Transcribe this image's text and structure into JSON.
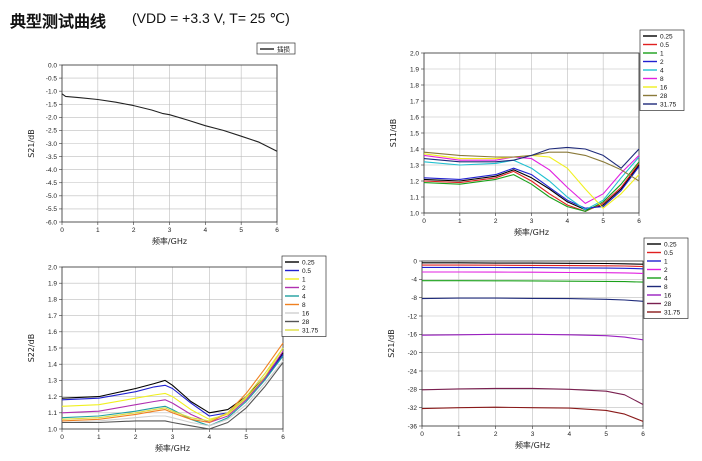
{
  "header": {
    "title": "典型测试曲线",
    "condition": "(VDD = +3.3 V, T= 25 ℃)"
  },
  "chart_data": [
    {
      "id": "c1",
      "type": "line",
      "xlabel": "频率/GHz",
      "ylabel": "S21/dB",
      "xlim": [
        0,
        6
      ],
      "ylim": [
        -6,
        0
      ],
      "xticks": [
        "0",
        "1",
        "2",
        "3",
        "4",
        "5",
        "6"
      ],
      "yticks": [
        "-6.0",
        "-5.5",
        "-5.0",
        "-4.5",
        "-4.0",
        "-3.5",
        "-3.0",
        "-2.5",
        "-2.0",
        "-1.5",
        "-1.0",
        "-0.5",
        "0.0"
      ],
      "legend": "top-right",
      "series": [
        {
          "name": "插损",
          "color": "#222222",
          "x": [
            0,
            0.1,
            0.5,
            1,
            1.5,
            2,
            2.5,
            2.8,
            3,
            3.5,
            4,
            4.5,
            5,
            5.5,
            6
          ],
          "y": [
            -1.1,
            -1.2,
            -1.25,
            -1.32,
            -1.42,
            -1.55,
            -1.72,
            -1.85,
            -1.9,
            -2.1,
            -2.32,
            -2.5,
            -2.72,
            -2.95,
            -3.3
          ]
        }
      ]
    },
    {
      "id": "c2",
      "type": "line",
      "xlabel": "频率/GHz",
      "ylabel": "S11/dB",
      "xlim": [
        0,
        6
      ],
      "ylim": [
        1.0,
        2.0
      ],
      "xticks": [
        "0",
        "1",
        "2",
        "3",
        "4",
        "5",
        "6"
      ],
      "yticks": [
        "1.0",
        "1.1",
        "1.2",
        "1.3",
        "1.4",
        "1.5",
        "1.6",
        "1.7",
        "1.8",
        "1.9",
        "2.0"
      ],
      "legend": "outside-top-right",
      "series": [
        {
          "name": "0.25",
          "color": "#000000",
          "x": [
            0,
            1,
            2,
            2.5,
            3,
            3.5,
            4,
            4.5,
            5,
            5.5,
            6
          ],
          "y": [
            1.21,
            1.2,
            1.23,
            1.27,
            1.22,
            1.15,
            1.07,
            1.02,
            1.05,
            1.15,
            1.3
          ]
        },
        {
          "name": "0.5",
          "color": "#e02020",
          "x": [
            0,
            1,
            2,
            2.5,
            3,
            3.5,
            4,
            4.5,
            5,
            5.5,
            6
          ],
          "y": [
            1.2,
            1.19,
            1.22,
            1.26,
            1.2,
            1.12,
            1.05,
            1.01,
            1.06,
            1.16,
            1.31
          ]
        },
        {
          "name": "1",
          "color": "#19a019",
          "x": [
            0,
            1,
            2,
            2.5,
            3,
            3.5,
            4,
            4.5,
            5,
            5.5,
            6
          ],
          "y": [
            1.19,
            1.18,
            1.21,
            1.24,
            1.18,
            1.1,
            1.04,
            1.01,
            1.07,
            1.18,
            1.32
          ]
        },
        {
          "name": "2",
          "color": "#2020d0",
          "x": [
            0,
            1,
            2,
            2.5,
            3,
            3.5,
            4,
            4.5,
            5,
            5.5,
            6
          ],
          "y": [
            1.22,
            1.21,
            1.24,
            1.28,
            1.24,
            1.16,
            1.08,
            1.03,
            1.04,
            1.14,
            1.29
          ]
        },
        {
          "name": "4",
          "color": "#20c0d0",
          "x": [
            0,
            1,
            2,
            2.5,
            3,
            3.5,
            4,
            4.5,
            5,
            5.5,
            6
          ],
          "y": [
            1.32,
            1.3,
            1.31,
            1.33,
            1.28,
            1.2,
            1.1,
            1.02,
            1.08,
            1.22,
            1.35
          ]
        },
        {
          "name": "8",
          "color": "#e020e0",
          "x": [
            0,
            1,
            2,
            2.5,
            3,
            3.5,
            4,
            4.5,
            5,
            5.5,
            6
          ],
          "y": [
            1.36,
            1.33,
            1.33,
            1.35,
            1.34,
            1.27,
            1.16,
            1.06,
            1.12,
            1.25,
            1.36
          ]
        },
        {
          "name": "16",
          "color": "#f0f020",
          "x": [
            0,
            1,
            2,
            2.5,
            3,
            3.5,
            4,
            4.5,
            5,
            5.5,
            6
          ],
          "y": [
            1.37,
            1.34,
            1.34,
            1.35,
            1.36,
            1.35,
            1.28,
            1.15,
            1.03,
            1.12,
            1.24
          ]
        },
        {
          "name": "28",
          "color": "#8a7a3a",
          "x": [
            0,
            1,
            2,
            2.5,
            3,
            3.5,
            4,
            4.5,
            5,
            5.5,
            6
          ],
          "y": [
            1.38,
            1.36,
            1.35,
            1.35,
            1.36,
            1.38,
            1.38,
            1.36,
            1.32,
            1.27,
            1.2
          ]
        },
        {
          "name": "31.75",
          "color": "#1e2a7a",
          "x": [
            0,
            1,
            2,
            2.5,
            3,
            3.5,
            4,
            4.5,
            5,
            5.5,
            6
          ],
          "y": [
            1.34,
            1.32,
            1.32,
            1.33,
            1.36,
            1.4,
            1.41,
            1.4,
            1.36,
            1.28,
            1.4
          ]
        }
      ]
    },
    {
      "id": "c3",
      "type": "line",
      "xlabel": "频率/GHz",
      "ylabel": "S22/dB",
      "xlim": [
        0,
        6
      ],
      "ylim": [
        1.0,
        2.0
      ],
      "xticks": [
        "0",
        "1",
        "2",
        "3",
        "4",
        "5",
        "6"
      ],
      "yticks": [
        "1.0",
        "1.1",
        "1.2",
        "1.3",
        "1.4",
        "1.5",
        "1.6",
        "1.7",
        "1.8",
        "1.9",
        "2.0"
      ],
      "legend": "top-right",
      "series": [
        {
          "name": "0.25",
          "color": "#000000",
          "x": [
            0,
            1,
            2,
            2.5,
            2.8,
            3,
            3.5,
            4,
            4.5,
            5,
            5.5,
            6
          ],
          "y": [
            1.19,
            1.2,
            1.25,
            1.28,
            1.3,
            1.27,
            1.17,
            1.1,
            1.12,
            1.2,
            1.32,
            1.47
          ]
        },
        {
          "name": "0.5",
          "color": "#2020d0",
          "x": [
            0,
            1,
            2,
            2.5,
            2.8,
            3,
            3.5,
            4,
            4.5,
            5,
            5.5,
            6
          ],
          "y": [
            1.18,
            1.19,
            1.23,
            1.26,
            1.27,
            1.25,
            1.16,
            1.08,
            1.1,
            1.19,
            1.31,
            1.46
          ]
        },
        {
          "name": "1",
          "color": "#f0f020",
          "x": [
            0,
            1,
            2,
            2.5,
            2.8,
            3,
            3.5,
            4,
            4.5,
            5,
            5.5,
            6
          ],
          "y": [
            1.14,
            1.15,
            1.19,
            1.21,
            1.22,
            1.2,
            1.12,
            1.06,
            1.09,
            1.19,
            1.32,
            1.5
          ]
        },
        {
          "name": "2",
          "color": "#b030b0",
          "x": [
            0,
            1,
            2,
            2.5,
            2.8,
            3,
            3.5,
            4,
            4.5,
            5,
            5.5,
            6
          ],
          "y": [
            1.1,
            1.11,
            1.15,
            1.17,
            1.18,
            1.16,
            1.09,
            1.04,
            1.08,
            1.18,
            1.31,
            1.48
          ]
        },
        {
          "name": "4",
          "color": "#20a0a0",
          "x": [
            0,
            1,
            2,
            2.5,
            2.8,
            3,
            3.5,
            4,
            4.5,
            5,
            5.5,
            6
          ],
          "y": [
            1.07,
            1.08,
            1.11,
            1.13,
            1.14,
            1.12,
            1.06,
            1.02,
            1.07,
            1.17,
            1.3,
            1.45
          ]
        },
        {
          "name": "8",
          "color": "#f08020",
          "x": [
            0,
            1,
            2,
            2.5,
            2.8,
            3,
            3.5,
            4,
            4.5,
            5,
            5.5,
            6
          ],
          "y": [
            1.05,
            1.06,
            1.09,
            1.11,
            1.12,
            1.1,
            1.06,
            1.04,
            1.1,
            1.22,
            1.37,
            1.53
          ]
        },
        {
          "name": "16",
          "color": "#d0d0d0",
          "x": [
            0,
            1,
            2,
            2.5,
            2.8,
            3,
            3.5,
            4,
            4.5,
            5,
            5.5,
            6
          ],
          "y": [
            1.04,
            1.05,
            1.07,
            1.08,
            1.08,
            1.07,
            1.04,
            1.02,
            1.06,
            1.15,
            1.28,
            1.42
          ]
        },
        {
          "name": "28",
          "color": "#555555",
          "x": [
            0,
            1,
            2,
            2.5,
            2.8,
            3,
            3.5,
            4,
            4.5,
            5,
            5.5,
            6
          ],
          "y": [
            1.04,
            1.04,
            1.05,
            1.05,
            1.05,
            1.04,
            1.02,
            1.0,
            1.04,
            1.13,
            1.26,
            1.41
          ]
        },
        {
          "name": "31.75",
          "color": "#dddd40",
          "x": [
            0,
            1,
            2,
            2.5,
            2.8,
            3,
            3.5,
            4,
            4.5,
            5,
            5.5,
            6
          ],
          "y": [
            1.06,
            1.07,
            1.1,
            1.12,
            1.13,
            1.11,
            1.07,
            1.05,
            1.1,
            1.2,
            1.34,
            1.5
          ]
        }
      ]
    },
    {
      "id": "c4",
      "type": "line",
      "xlabel": "频率/GHz",
      "ylabel": "S21/dB",
      "xlim": [
        0,
        6
      ],
      "ylim": [
        -36,
        0
      ],
      "xticks": [
        "0",
        "1",
        "2",
        "3",
        "4",
        "5",
        "6"
      ],
      "yticks": [
        "-36",
        "-32",
        "-28",
        "-24",
        "-20",
        "-16",
        "-12",
        "-8",
        "-4",
        "0"
      ],
      "legend": "outside-top-right",
      "series": [
        {
          "name": "0.25",
          "color": "#000000",
          "x": [
            0,
            1,
            2,
            3,
            4,
            5,
            5.5,
            6
          ],
          "y": [
            -0.4,
            -0.4,
            -0.45,
            -0.45,
            -0.5,
            -0.55,
            -0.6,
            -0.7
          ]
        },
        {
          "name": "0.5",
          "color": "#e02020",
          "x": [
            0,
            1,
            2,
            3,
            4,
            5,
            5.5,
            6
          ],
          "y": [
            -0.9,
            -0.9,
            -0.92,
            -0.95,
            -1.0,
            -1.05,
            -1.1,
            -1.2
          ]
        },
        {
          "name": "1",
          "color": "#2020d0",
          "x": [
            0,
            1,
            2,
            3,
            4,
            5,
            5.5,
            6
          ],
          "y": [
            -1.4,
            -1.4,
            -1.42,
            -1.45,
            -1.5,
            -1.55,
            -1.6,
            -1.7
          ]
        },
        {
          "name": "2",
          "color": "#e020e0",
          "x": [
            0,
            1,
            2,
            3,
            4,
            5,
            5.5,
            6
          ],
          "y": [
            -2.4,
            -2.4,
            -2.42,
            -2.45,
            -2.5,
            -2.55,
            -2.6,
            -2.7
          ]
        },
        {
          "name": "4",
          "color": "#19a019",
          "x": [
            0,
            1,
            2,
            3,
            4,
            5,
            5.5,
            6
          ],
          "y": [
            -4.3,
            -4.3,
            -4.32,
            -4.35,
            -4.4,
            -4.45,
            -4.5,
            -4.6
          ]
        },
        {
          "name": "8",
          "color": "#1e2a7a",
          "x": [
            0,
            1,
            2,
            3,
            4,
            5,
            5.5,
            6
          ],
          "y": [
            -8.2,
            -8.1,
            -8.1,
            -8.15,
            -8.2,
            -8.35,
            -8.5,
            -8.8
          ]
        },
        {
          "name": "16",
          "color": "#9a20c0",
          "x": [
            0,
            1,
            2,
            3,
            4,
            5,
            5.5,
            6
          ],
          "y": [
            -16.2,
            -16.1,
            -16.0,
            -16.0,
            -16.1,
            -16.3,
            -16.6,
            -17.2
          ]
        },
        {
          "name": "28",
          "color": "#7a2050",
          "x": [
            0,
            1,
            2,
            3,
            4,
            5,
            5.5,
            6
          ],
          "y": [
            -28.1,
            -27.9,
            -27.8,
            -27.8,
            -28.0,
            -28.4,
            -29.2,
            -31.3
          ]
        },
        {
          "name": "31.75",
          "color": "#8a1a1a",
          "x": [
            0,
            1,
            2,
            3,
            4,
            5,
            5.5,
            6
          ],
          "y": [
            -32.2,
            -32.0,
            -31.9,
            -32.0,
            -32.1,
            -32.6,
            -33.4,
            -35.0
          ]
        }
      ]
    }
  ]
}
